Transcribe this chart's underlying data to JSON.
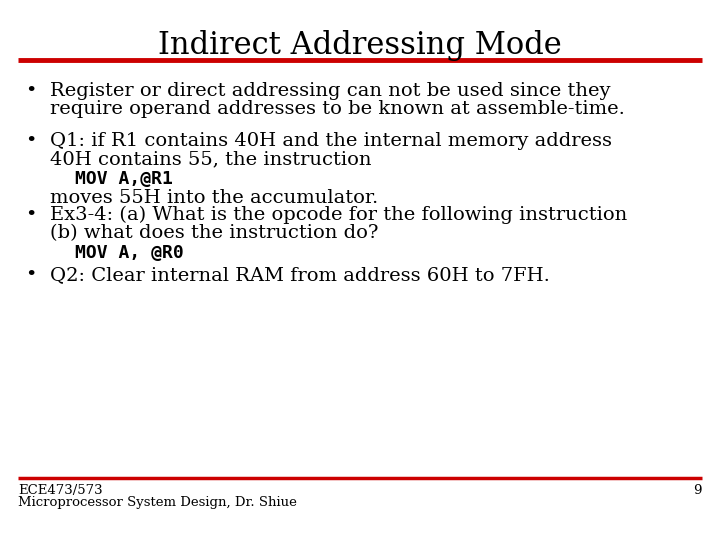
{
  "title": "Indirect Addressing Mode",
  "title_fontsize": 22,
  "title_font": "serif",
  "bg_color": "#ffffff",
  "title_color": "#000000",
  "rule_color": "#cc0000",
  "body_color": "#000000",
  "body_fontsize": 14,
  "body_font": "serif",
  "code_fontsize": 13,
  "code_font": "monospace",
  "footer_fontsize": 9.5,
  "footer_font": "serif",
  "slide_number": "9",
  "footer_left1": "ECE473/573",
  "footer_left2": "Microprocessor System Design, Dr. Shiue",
  "bullet1_line1": "Register or direct addressing can not be used since they",
  "bullet1_line2": "require operand addresses to be known at assemble-time.",
  "bullet2_line1": "Q1: if R1 contains 40H and the internal memory address",
  "bullet2_line2": "40H contains 55, the instruction",
  "code1": "MOV A,@R1",
  "text_after_code1": "moves 55H into the accumulator.",
  "bullet3_line1": "Ex3-4: (a) What is the opcode for the following instruction",
  "bullet3_line2": "(b) what does the instruction do?",
  "code2": "MOV A, @R0",
  "bullet4_line1": "Q2: Clear internal RAM from address 60H to 7FH."
}
